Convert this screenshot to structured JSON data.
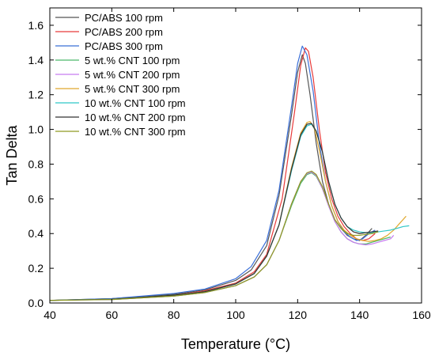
{
  "chart_data": {
    "type": "line",
    "xlabel": "Temperature (°C)",
    "ylabel": "Tan Delta",
    "xlim": [
      40,
      160
    ],
    "ylim": [
      0,
      1.7
    ],
    "xticks": [
      "40",
      "60",
      "80",
      "100",
      "120",
      "140",
      "160"
    ],
    "yticks": [
      "0.0",
      "0.2",
      "0.4",
      "0.6",
      "0.8",
      "1.0",
      "1.2",
      "1.4",
      "1.6"
    ],
    "grid": false,
    "legend_position": "top-left",
    "series": [
      {
        "name": "PC/ABS 100 rpm",
        "color": "#555555",
        "x": [
          40,
          60,
          80,
          90,
          100,
          105,
          110,
          114,
          118,
          120,
          121.5,
          122.5,
          124,
          126,
          128,
          130,
          132,
          134,
          136,
          138,
          140,
          142,
          144
        ],
        "y": [
          0.015,
          0.025,
          0.05,
          0.075,
          0.13,
          0.19,
          0.33,
          0.62,
          1.08,
          1.33,
          1.43,
          1.38,
          1.2,
          0.92,
          0.7,
          0.57,
          0.48,
          0.43,
          0.39,
          0.37,
          0.36,
          0.39,
          0.43
        ]
      },
      {
        "name": "PC/ABS 200 rpm",
        "color": "#e83a3a",
        "x": [
          40,
          60,
          80,
          90,
          100,
          106,
          110,
          115,
          119,
          121,
          122.5,
          123.5,
          125,
          127,
          129,
          131,
          133,
          135,
          137,
          139,
          141,
          143,
          145
        ],
        "y": [
          0.015,
          0.022,
          0.045,
          0.07,
          0.115,
          0.18,
          0.28,
          0.6,
          1.1,
          1.37,
          1.47,
          1.45,
          1.3,
          1.0,
          0.75,
          0.6,
          0.5,
          0.44,
          0.4,
          0.37,
          0.36,
          0.37,
          0.4
        ]
      },
      {
        "name": "PC/ABS 300 rpm",
        "color": "#3a6fd8",
        "x": [
          40,
          60,
          80,
          90,
          100,
          105,
          110,
          114,
          118,
          120,
          121.5,
          123,
          125,
          127,
          129,
          131,
          133,
          135,
          137,
          139,
          141,
          143,
          145
        ],
        "y": [
          0.015,
          0.025,
          0.055,
          0.08,
          0.14,
          0.21,
          0.36,
          0.65,
          1.13,
          1.38,
          1.48,
          1.43,
          1.22,
          0.92,
          0.7,
          0.56,
          0.47,
          0.41,
          0.38,
          0.36,
          0.37,
          0.4,
          0.42
        ]
      },
      {
        "name": "5 wt.% CNT 100 rpm",
        "color": "#4cb96a",
        "x": [
          40,
          60,
          80,
          90,
          100,
          106,
          110,
          114,
          118,
          121,
          123,
          124.5,
          126,
          128,
          130,
          132,
          134,
          136,
          138,
          140,
          142,
          144,
          146,
          148,
          150
        ],
        "y": [
          0.015,
          0.02,
          0.04,
          0.06,
          0.1,
          0.15,
          0.22,
          0.36,
          0.56,
          0.69,
          0.74,
          0.75,
          0.73,
          0.66,
          0.56,
          0.47,
          0.41,
          0.37,
          0.35,
          0.34,
          0.34,
          0.35,
          0.36,
          0.37,
          0.38
        ]
      },
      {
        "name": "5 wt.% CNT 200 rpm",
        "color": "#c77cf0",
        "x": [
          40,
          60,
          80,
          90,
          100,
          106,
          110,
          114,
          118,
          121,
          123,
          124.5,
          126,
          128,
          130,
          132,
          134,
          136,
          138,
          140,
          142,
          144,
          146,
          148,
          150,
          151
        ],
        "y": [
          0.015,
          0.02,
          0.04,
          0.06,
          0.1,
          0.15,
          0.22,
          0.36,
          0.57,
          0.7,
          0.745,
          0.755,
          0.735,
          0.66,
          0.56,
          0.47,
          0.41,
          0.37,
          0.35,
          0.34,
          0.335,
          0.34,
          0.35,
          0.36,
          0.37,
          0.39
        ]
      },
      {
        "name": "5 wt.% CNT 300 rpm",
        "color": "#e0a82e",
        "x": [
          40,
          60,
          80,
          90,
          100,
          106,
          110,
          114,
          118,
          121,
          123,
          124,
          125.5,
          127,
          129,
          131,
          133,
          135,
          137,
          139,
          141,
          143,
          145,
          147,
          149,
          151,
          153,
          155
        ],
        "y": [
          0.015,
          0.022,
          0.045,
          0.065,
          0.11,
          0.17,
          0.27,
          0.45,
          0.78,
          0.98,
          1.04,
          1.045,
          1.0,
          0.88,
          0.7,
          0.56,
          0.47,
          0.42,
          0.39,
          0.37,
          0.36,
          0.355,
          0.36,
          0.37,
          0.39,
          0.42,
          0.46,
          0.5
        ]
      },
      {
        "name": "10 wt.% CNT 100 rpm",
        "color": "#2fc7c7",
        "x": [
          40,
          60,
          80,
          90,
          100,
          106,
          110,
          114,
          118,
          121,
          123,
          124.5,
          126,
          128,
          130,
          132,
          134,
          136,
          138,
          140,
          142,
          144,
          146,
          148,
          150,
          152,
          154,
          156
        ],
        "y": [
          0.015,
          0.022,
          0.045,
          0.065,
          0.11,
          0.17,
          0.27,
          0.45,
          0.76,
          0.96,
          1.02,
          1.03,
          0.99,
          0.87,
          0.7,
          0.57,
          0.49,
          0.44,
          0.42,
          0.41,
          0.405,
          0.405,
          0.41,
          0.415,
          0.42,
          0.43,
          0.44,
          0.445
        ]
      },
      {
        "name": "10 wt.% CNT 200 rpm",
        "color": "#333333",
        "x": [
          40,
          60,
          80,
          90,
          100,
          106,
          110,
          114,
          118,
          121,
          123,
          124.5,
          126,
          128,
          130,
          132,
          134,
          136,
          138,
          140,
          142,
          144,
          146
        ],
        "y": [
          0.015,
          0.022,
          0.045,
          0.065,
          0.11,
          0.17,
          0.27,
          0.45,
          0.77,
          0.97,
          1.03,
          1.035,
          0.99,
          0.87,
          0.7,
          0.57,
          0.49,
          0.44,
          0.41,
          0.4,
          0.405,
          0.41,
          0.415
        ]
      },
      {
        "name": "10 wt.% CNT 300 rpm",
        "color": "#8f9a20",
        "x": [
          40,
          60,
          80,
          90,
          100,
          106,
          110,
          114,
          118,
          121,
          123,
          124.5,
          126,
          128,
          130,
          132,
          134,
          136,
          138,
          140,
          142,
          144,
          146
        ],
        "y": [
          0.015,
          0.02,
          0.04,
          0.06,
          0.1,
          0.15,
          0.22,
          0.36,
          0.57,
          0.7,
          0.75,
          0.76,
          0.74,
          0.67,
          0.57,
          0.48,
          0.43,
          0.4,
          0.39,
          0.39,
          0.395,
          0.4,
          0.41
        ]
      }
    ]
  }
}
